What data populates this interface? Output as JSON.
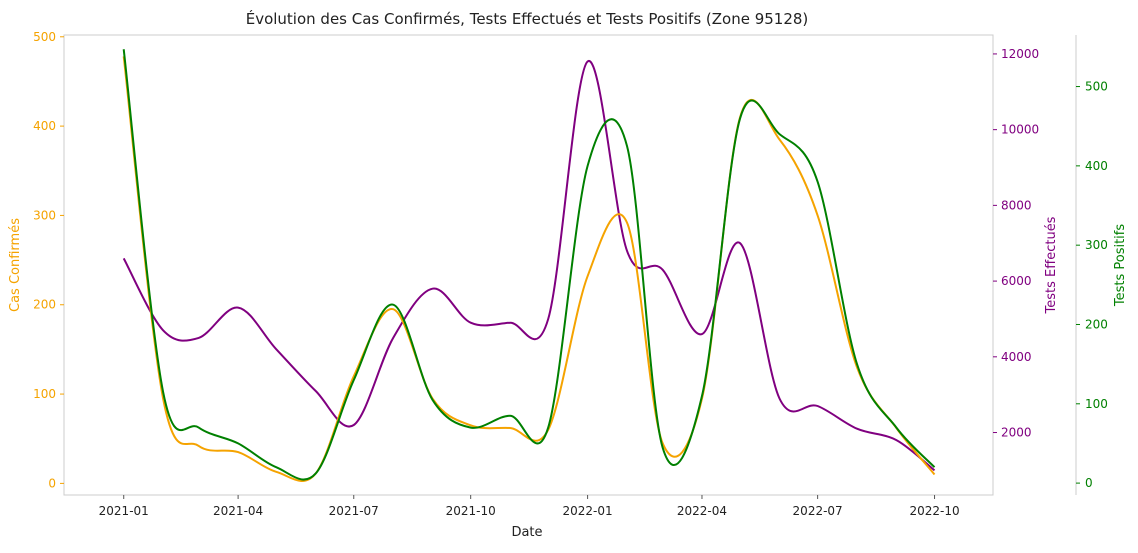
{
  "chart_data": {
    "type": "line",
    "title": "Évolution des Cas Confirmés, Tests Effectués et Tests Positifs (Zone 95128)",
    "xlabel": "Date",
    "x_ticks": [
      "2021-01",
      "2021-04",
      "2021-07",
      "2021-10",
      "2022-01",
      "2022-04",
      "2022-07",
      "2022-10"
    ],
    "grid": false,
    "x": [
      "2021-01-01",
      "2021-02-01",
      "2021-03-01",
      "2021-04-01",
      "2021-05-01",
      "2021-06-01",
      "2021-07-01",
      "2021-08-01",
      "2021-09-01",
      "2021-10-01",
      "2021-11-01",
      "2021-12-01",
      "2022-01-01",
      "2022-02-01",
      "2022-03-01",
      "2022-04-01",
      "2022-05-01",
      "2022-06-01",
      "2022-07-01",
      "2022-08-01",
      "2022-09-01",
      "2022-10-01"
    ],
    "axes": [
      {
        "id": "left",
        "label": "Cas Confirmés",
        "color": "#f5a300",
        "ylim": [
          -13,
          502
        ],
        "ticks": [
          0,
          100,
          200,
          300,
          400,
          500
        ]
      },
      {
        "id": "right1",
        "label": "Tests Effectués",
        "color": "#800080",
        "ylim": [
          350,
          12500
        ],
        "ticks": [
          2000,
          4000,
          6000,
          8000,
          10000,
          12000
        ]
      },
      {
        "id": "right2",
        "label": "Tests Positifs",
        "color": "#008000",
        "ylim": [
          -15,
          565
        ],
        "ticks": [
          0,
          100,
          200,
          300,
          400,
          500
        ]
      }
    ],
    "series": [
      {
        "name": "Cas Confirmés",
        "axis": "left",
        "color": "#f5a300",
        "values": [
          478,
          95,
          42,
          35,
          13,
          11,
          120,
          195,
          95,
          65,
          62,
          60,
          232,
          292,
          45,
          95,
          410,
          385,
          300,
          130,
          62,
          10
        ]
      },
      {
        "name": "Tests Effectués",
        "axis": "right1",
        "color": "#800080",
        "values": [
          6600,
          4700,
          4500,
          5300,
          4200,
          3100,
          2200,
          4500,
          5800,
          4900,
          4900,
          5000,
          11800,
          6800,
          6300,
          4600,
          7000,
          2900,
          2700,
          2100,
          1800,
          1000
        ]
      },
      {
        "name": "Tests Positifs",
        "axis": "right2",
        "color": "#008000",
        "values": [
          547,
          115,
          70,
          50,
          20,
          12,
          130,
          225,
          105,
          70,
          85,
          70,
          400,
          425,
          45,
          110,
          460,
          440,
          380,
          150,
          70,
          20
        ]
      }
    ]
  }
}
